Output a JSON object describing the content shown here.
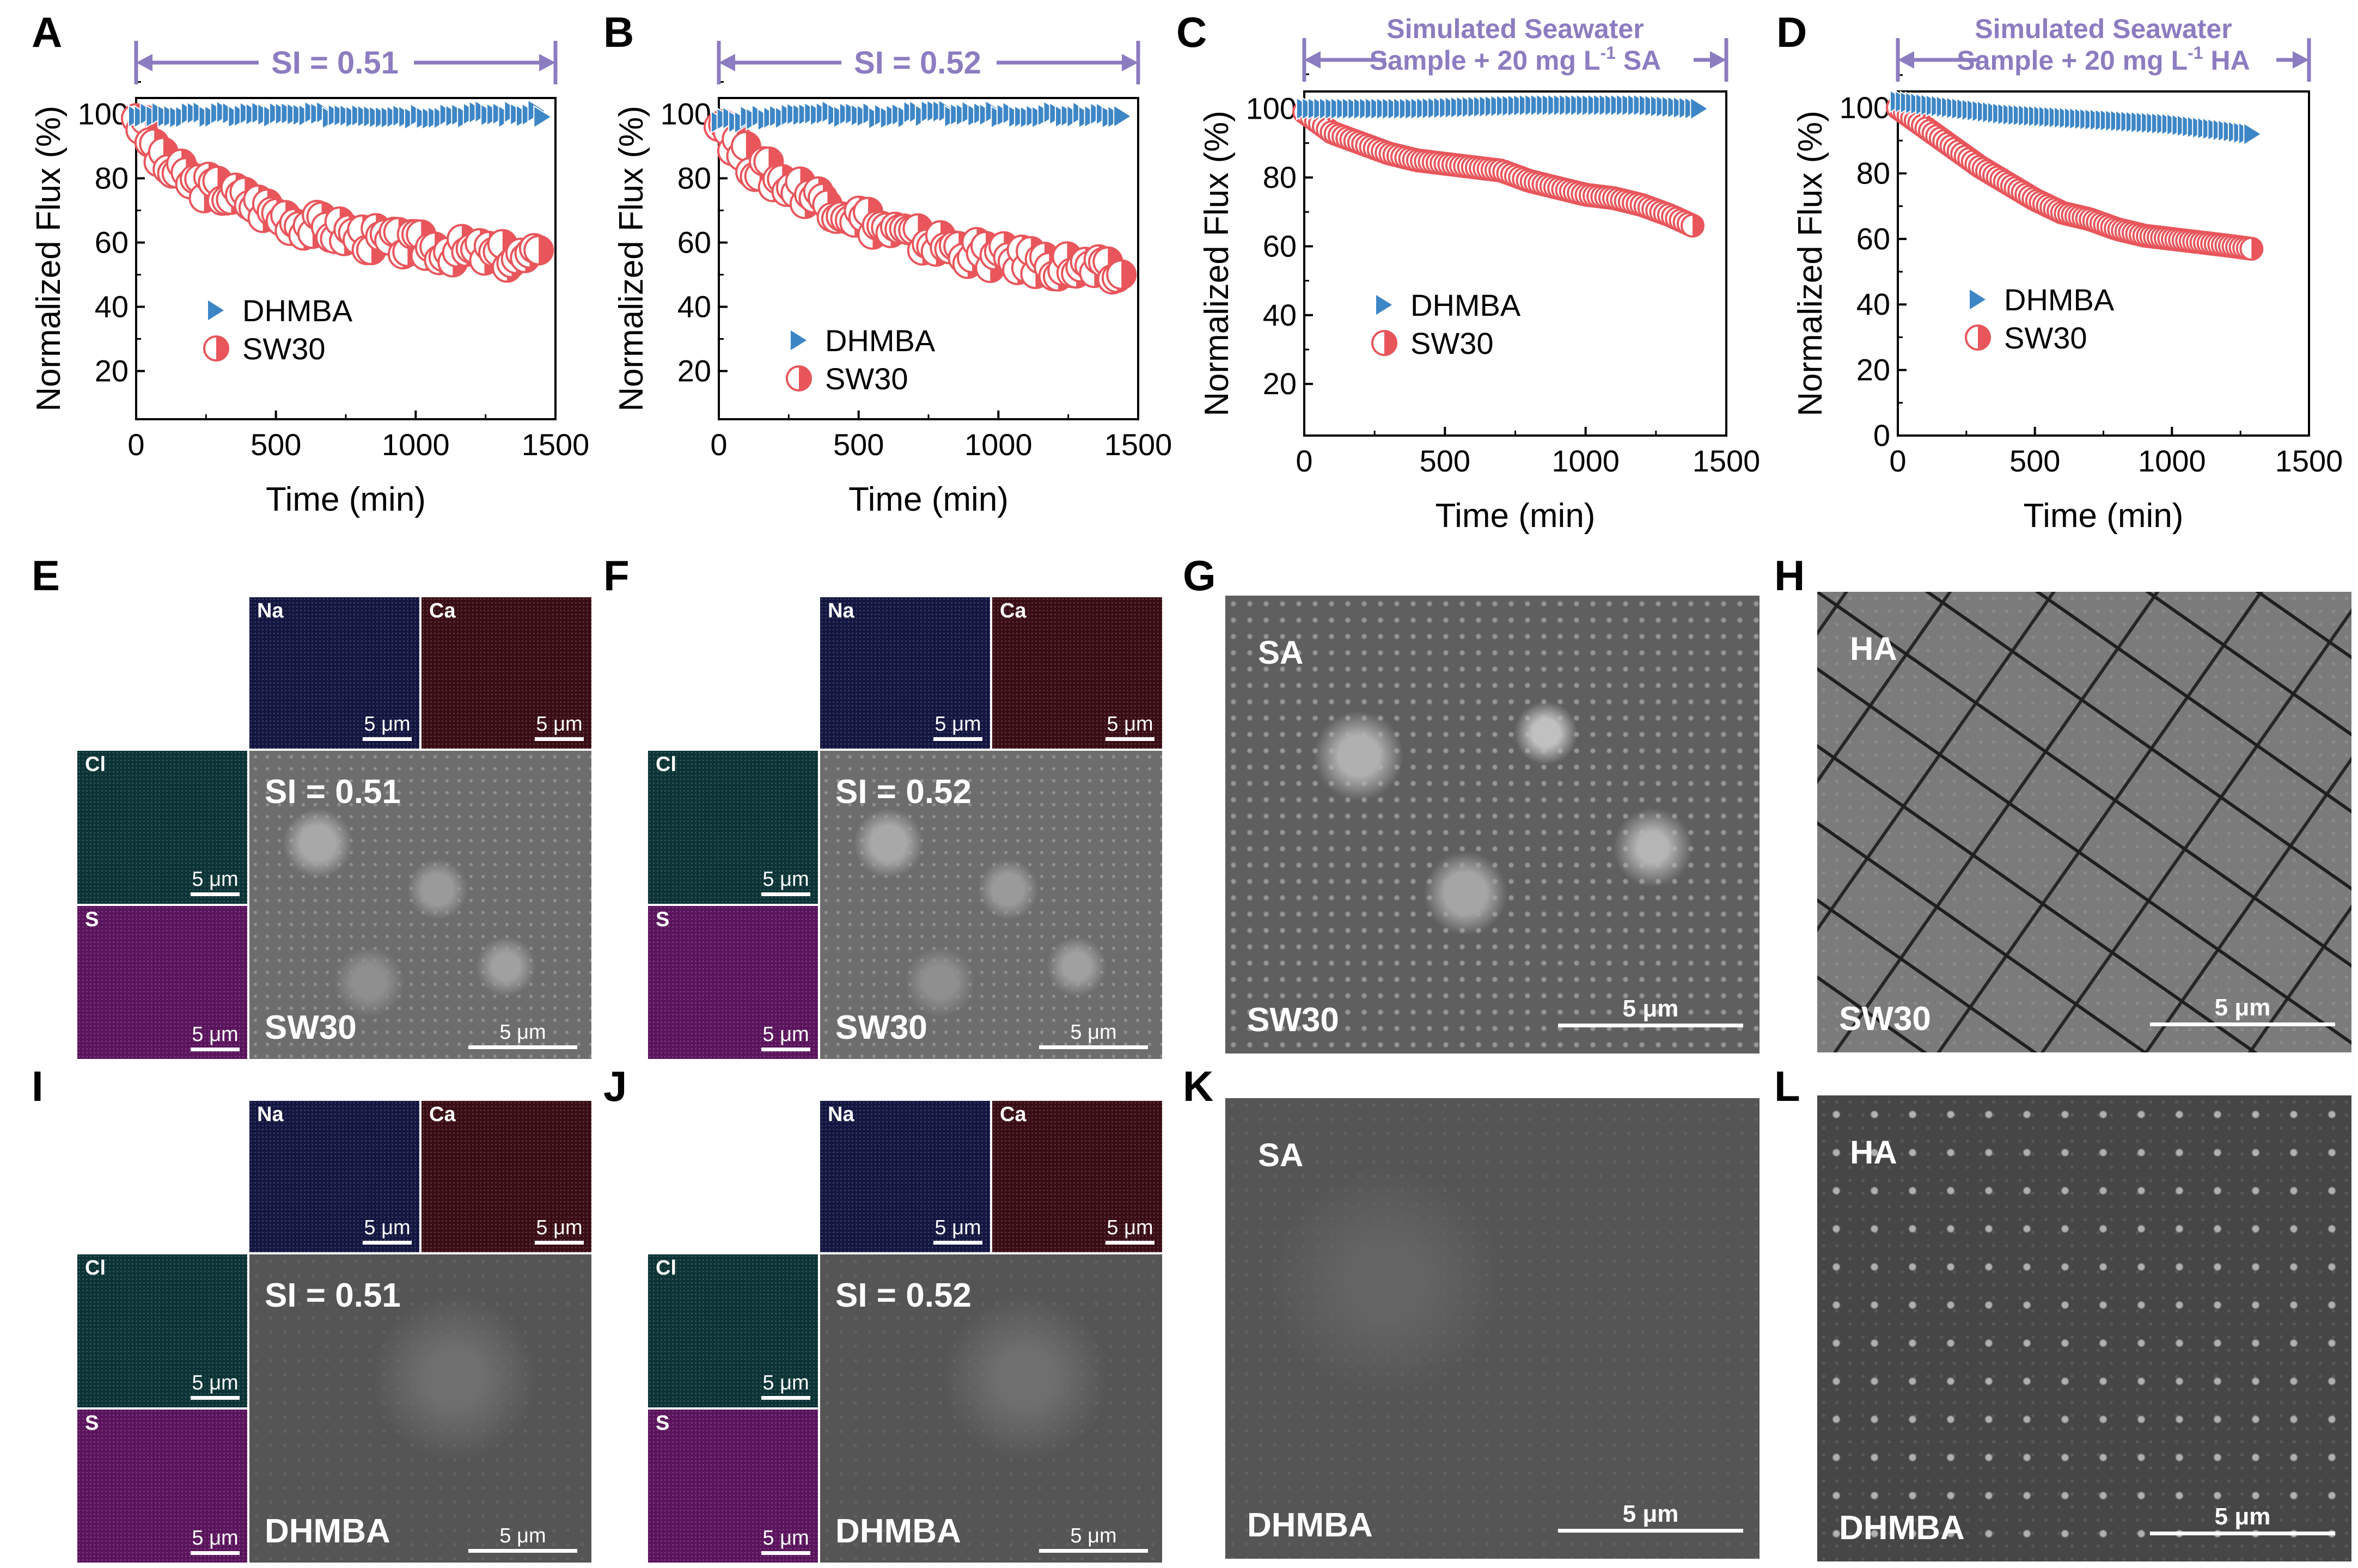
{
  "panels": {
    "A": "A",
    "B": "B",
    "C": "C",
    "D": "D",
    "E": "E",
    "F": "F",
    "G": "G",
    "H": "H",
    "I": "I",
    "J": "J",
    "K": "K",
    "L": "L"
  },
  "colors": {
    "dhmba": "#3d86c6",
    "sw30": "#e8565c",
    "annotation": "#8c7cc0"
  },
  "chart_data": [
    {
      "type": "scatter",
      "panel": "A",
      "annotation": "SI = 0.51",
      "xlabel": "Time (min)",
      "ylabel": "Normalized Flux (%)",
      "xlim": [
        0,
        1500
      ],
      "ylim": [
        5,
        105
      ],
      "xticks": [
        "0",
        "500",
        "1000",
        "1500"
      ],
      "yticks": [
        "20",
        "40",
        "60",
        "80",
        "100"
      ],
      "legend": [
        "DHMBA",
        "SW30"
      ],
      "series": [
        {
          "name": "DHMBA",
          "x": [
            0,
            200,
            400,
            600,
            800,
            1000,
            1200,
            1450
          ],
          "y": [
            100,
            99.5,
            100,
            99.5,
            100,
            99.5,
            100,
            100
          ]
        },
        {
          "name": "SW30",
          "x": [
            0,
            30,
            100,
            200,
            300,
            400,
            500,
            600,
            700,
            800,
            900,
            1000,
            1100,
            1200,
            1300,
            1400,
            1440
          ],
          "y": [
            100,
            95,
            84,
            79,
            76,
            73,
            69,
            66,
            64,
            62,
            60,
            59,
            58,
            57,
            56,
            55,
            55
          ]
        }
      ]
    },
    {
      "type": "scatter",
      "panel": "B",
      "annotation": "SI = 0.52",
      "xlabel": "Time (min)",
      "ylabel": "Normalized Flux (%)",
      "xlim": [
        0,
        1500
      ],
      "ylim": [
        5,
        105
      ],
      "xticks": [
        "0",
        "500",
        "1000",
        "1500"
      ],
      "yticks": [
        "20",
        "40",
        "60",
        "80",
        "100"
      ],
      "legend": [
        "DHMBA",
        "SW30"
      ],
      "series": [
        {
          "name": "DHMBA",
          "x": [
            0,
            200,
            400,
            600,
            800,
            1000,
            1200,
            1440
          ],
          "y": [
            98,
            99,
            100,
            99.5,
            100,
            100,
            100,
            100
          ]
        },
        {
          "name": "SW30",
          "x": [
            0,
            50,
            100,
            200,
            300,
            400,
            500,
            600,
            700,
            800,
            900,
            1000,
            1100,
            1200,
            1300,
            1400,
            1440
          ],
          "y": [
            100,
            92,
            86,
            80,
            76,
            72,
            68,
            64,
            61,
            59,
            57,
            55,
            54,
            53,
            52,
            50,
            49
          ]
        }
      ]
    },
    {
      "type": "scatter",
      "panel": "C",
      "annotation_line1": "Simulated Seawater",
      "annotation_line2": "Sample + 20 mg L",
      "annotation_sup": "-1",
      "annotation_tail": " SA",
      "xlabel": "Time (min)",
      "ylabel": "Normalized Flux (%)",
      "xlim": [
        0,
        1500
      ],
      "ylim": [
        5,
        105
      ],
      "xticks": [
        "0",
        "500",
        "1000",
        "1500"
      ],
      "yticks": [
        "20",
        "40",
        "60",
        "80",
        "100"
      ],
      "legend": [
        "DHMBA",
        "SW30"
      ],
      "series": [
        {
          "name": "DHMBA",
          "x": [
            0,
            200,
            400,
            600,
            800,
            1000,
            1200,
            1400
          ],
          "y": [
            100,
            100,
            100,
            100.5,
            101,
            101,
            101,
            100
          ]
        },
        {
          "name": "SW30",
          "x": [
            0,
            50,
            100,
            200,
            300,
            400,
            500,
            600,
            700,
            800,
            900,
            1000,
            1100,
            1200,
            1300,
            1380
          ],
          "y": [
            99,
            96,
            93,
            90,
            87,
            85,
            84,
            83,
            82,
            79,
            77,
            75,
            74,
            72,
            69,
            66
          ]
        }
      ]
    },
    {
      "type": "scatter",
      "panel": "D",
      "annotation_line1": "Simulated Seawater",
      "annotation_line2": "Sample + 20 mg L",
      "annotation_sup": "-1",
      "annotation_tail": " HA",
      "xlabel": "Time (min)",
      "ylabel": "Normalized Flux (%)",
      "xlim": [
        0,
        1500
      ],
      "ylim": [
        0,
        105
      ],
      "xticks": [
        "0",
        "500",
        "1000",
        "1500"
      ],
      "yticks": [
        "0",
        "20",
        "40",
        "60",
        "80",
        "100"
      ],
      "legend": [
        "DHMBA",
        "SW30"
      ],
      "series": [
        {
          "name": "DHMBA",
          "x": [
            0,
            200,
            400,
            600,
            800,
            1000,
            1200,
            1290
          ],
          "y": [
            102,
            100,
            98,
            97,
            96,
            95,
            93,
            92
          ]
        },
        {
          "name": "SW30",
          "x": [
            0,
            100,
            200,
            300,
            400,
            500,
            600,
            700,
            800,
            900,
            1000,
            1100,
            1200,
            1290
          ],
          "y": [
            100,
            94,
            88,
            82,
            77,
            72,
            68,
            66,
            63,
            61,
            60,
            59,
            58,
            57
          ]
        }
      ]
    }
  ],
  "edx": {
    "na": "Na",
    "ca": "Ca",
    "cl": "Cl",
    "s": "S",
    "scale": "5 μm",
    "E": {
      "si": "SI = 0.51",
      "membrane": "SW30"
    },
    "F": {
      "si": "SI = 0.52",
      "membrane": "SW30"
    },
    "I": {
      "si": "SI = 0.51",
      "membrane": "DHMBA"
    },
    "J": {
      "si": "SI = 0.52",
      "membrane": "DHMBA"
    }
  },
  "sem": {
    "scale": "5 μm",
    "G": {
      "foulant": "SA",
      "membrane": "SW30"
    },
    "H": {
      "foulant": "HA",
      "membrane": "SW30"
    },
    "K": {
      "foulant": "SA",
      "membrane": "DHMBA"
    },
    "L": {
      "foulant": "HA",
      "membrane": "DHMBA"
    }
  }
}
